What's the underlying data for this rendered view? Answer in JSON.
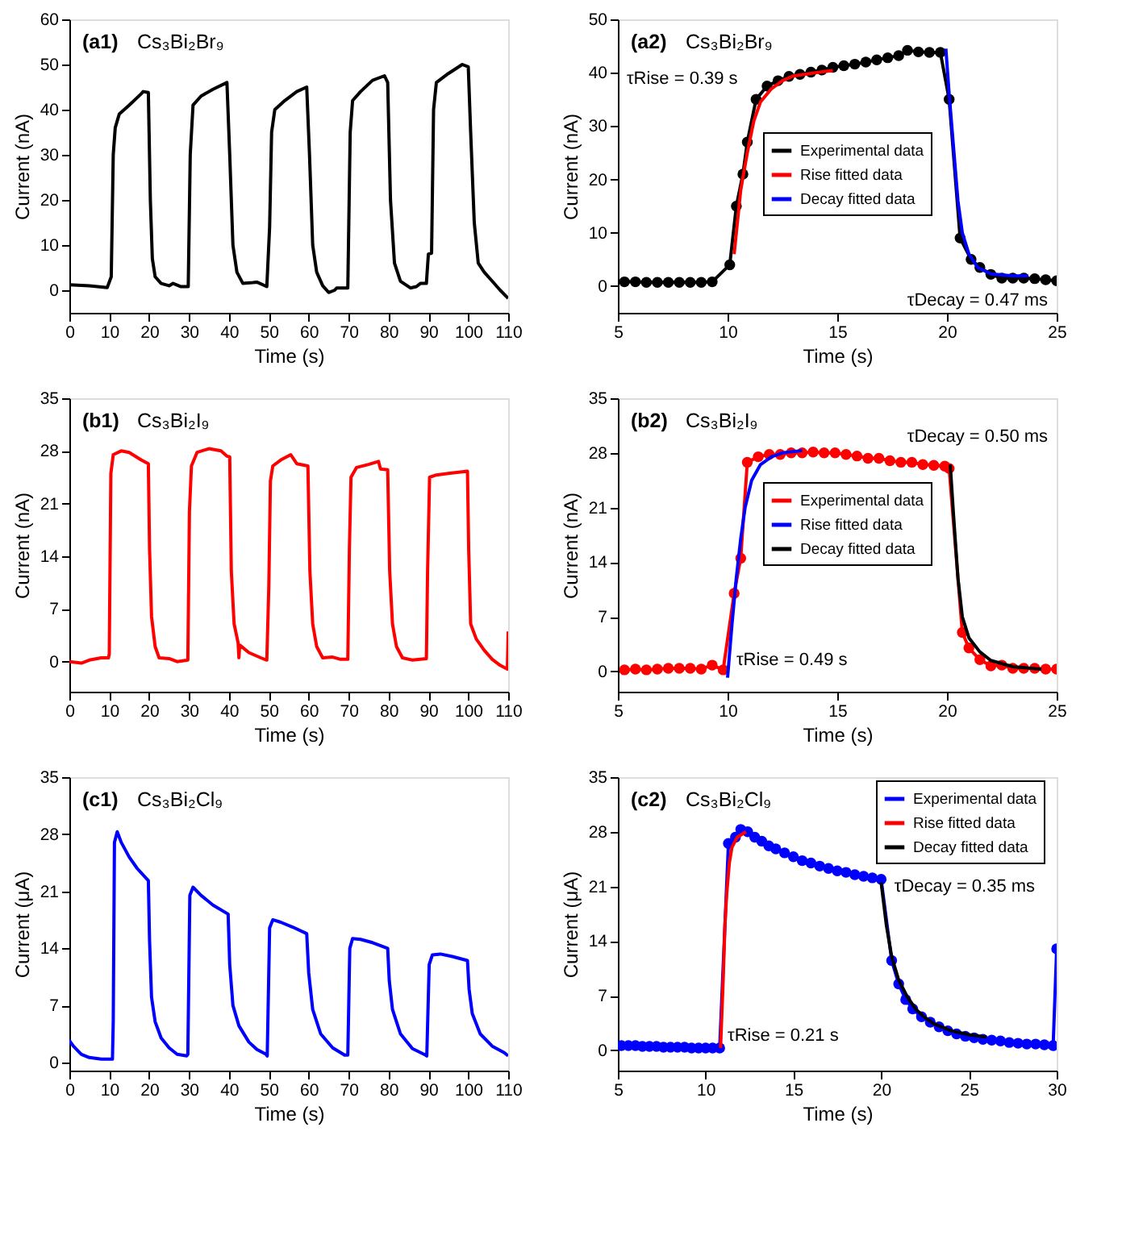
{
  "chart_data": [
    {
      "type": "line",
      "title": "(a1) Cs₃Bi₂Br₉",
      "xlabel": "Time (s)",
      "ylabel": "Current (nA)",
      "xlim": [
        0,
        110
      ],
      "xticks": [
        0,
        10,
        20,
        30,
        40,
        50,
        60,
        70,
        80,
        90,
        100,
        110
      ],
      "ylim": [
        -5,
        60
      ],
      "yticks": [
        0,
        10,
        20,
        30,
        40,
        50,
        60
      ],
      "series": [
        {
          "color": "#000000",
          "x": [
            0,
            5,
            9.5,
            10.5,
            11,
            11.5,
            12.5,
            15,
            18,
            18.5,
            19.8,
            20.3,
            20.8,
            21.5,
            23,
            25,
            26,
            28,
            29.8,
            30.3,
            31,
            33,
            36,
            39.5,
            40.2,
            41,
            42,
            43.5,
            46,
            47,
            49.5,
            50.2,
            50.7,
            51.5,
            54,
            57,
            59.5,
            60.2,
            61,
            62,
            63.5,
            65,
            66.5,
            67,
            69.8,
            70.4,
            71,
            73,
            76,
            79,
            79.8,
            80.5,
            81.5,
            83,
            85.5,
            87,
            88,
            89.5,
            90,
            90.8,
            91.3,
            92,
            95,
            98.5,
            100,
            100.6,
            101.5,
            102.5,
            104,
            106,
            108,
            110
          ],
          "values": [
            1.2,
            1,
            0.6,
            3,
            30,
            36,
            39,
            41,
            43.5,
            44,
            43.8,
            20,
            7,
            3,
            1.5,
            1,
            1.5,
            0.8,
            0.8,
            30,
            41,
            43,
            44.5,
            46,
            30,
            10,
            4,
            1.5,
            1.7,
            1.8,
            0.8,
            14,
            35,
            40,
            42,
            44,
            45,
            30,
            10,
            4,
            1,
            -0.5,
            0,
            0.5,
            0.5,
            35,
            42,
            44,
            46.5,
            47.5,
            46,
            20,
            6,
            2,
            0.5,
            0.8,
            1.5,
            1.5,
            8,
            8.2,
            40,
            46,
            48,
            50,
            49.5,
            35,
            15,
            6,
            4,
            2,
            0,
            -1.8
          ]
        }
      ]
    },
    {
      "type": "line",
      "title": "(a2) Cs₃Bi₂Br₉",
      "xlabel": "Time (s)",
      "ylabel": "Current (nA)",
      "xlim": [
        5,
        25
      ],
      "xticks": [
        5,
        10,
        15,
        20,
        25
      ],
      "ylim": [
        -5,
        50
      ],
      "yticks": [
        0,
        10,
        20,
        30,
        40,
        50
      ],
      "legend": "right",
      "annotations": [
        "τRise = 0.39 s",
        "τDecay = 0.47 ms"
      ],
      "series": [
        {
          "name": "Experimental data",
          "color": "#000000",
          "marker": "circle",
          "x": [
            5.3,
            5.8,
            6.3,
            6.8,
            7.3,
            7.8,
            8.3,
            8.8,
            9.3,
            10.1,
            10.4,
            10.7,
            10.9,
            11.3,
            11.8,
            12.3,
            12.8,
            13.3,
            13.8,
            14.3,
            14.8,
            15.3,
            15.8,
            16.3,
            16.8,
            17.3,
            17.8,
            18.2,
            18.7,
            19.2,
            19.7,
            20.1,
            20.6,
            21.1,
            21.5,
            22,
            22.5,
            23,
            23.5,
            24,
            24.5,
            25
          ],
          "values": [
            0.8,
            0.8,
            0.7,
            0.7,
            0.7,
            0.7,
            0.7,
            0.7,
            0.8,
            4,
            15,
            21,
            27,
            35,
            37.5,
            38.5,
            39.3,
            39.7,
            40.1,
            40.5,
            41,
            41.3,
            41.6,
            42,
            42.4,
            42.8,
            43.2,
            44.2,
            43.9,
            43.8,
            43.8,
            35,
            9,
            5,
            3.5,
            2.2,
            1.5,
            1.5,
            1.5,
            1.4,
            1.2,
            1.0
          ]
        },
        {
          "name": "Rise fitted data",
          "color": "#ff0000",
          "x": [
            10.3,
            10.6,
            10.9,
            11.2,
            11.5,
            12,
            12.5,
            13,
            14,
            14.8
          ],
          "values": [
            6,
            18,
            25,
            31,
            34.5,
            37,
            38.5,
            39.4,
            40,
            40.4
          ]
        },
        {
          "name": "Decay fitted data",
          "color": "#0000ff",
          "x": [
            19.95,
            20.1,
            20.3,
            20.5,
            20.7,
            21,
            21.4,
            22,
            23,
            23.7
          ],
          "values": [
            44.5,
            36,
            26,
            16,
            10,
            6,
            3.5,
            2.3,
            1.9,
            1.9
          ]
        }
      ]
    },
    {
      "type": "line",
      "title": "(b1) Cs₃Bi₂I₉",
      "xlabel": "Time (s)",
      "ylabel": "Current (nA)",
      "xlim": [
        0,
        110
      ],
      "xticks": [
        0,
        10,
        20,
        30,
        40,
        50,
        60,
        70,
        80,
        90,
        100,
        110
      ],
      "ylim": [
        -4,
        35
      ],
      "yticks": [
        0,
        7,
        14,
        21,
        28,
        35
      ],
      "series": [
        {
          "color": "#ff0000",
          "x": [
            0,
            3,
            5,
            8,
            9.8,
            10,
            10.4,
            11,
            13,
            15,
            18,
            19.8,
            20.1,
            20.6,
            21.5,
            22.5,
            25,
            27,
            29.7,
            30.1,
            30.6,
            32,
            35,
            38,
            39.5,
            40.2,
            40.6,
            41.3,
            42.3,
            42.5,
            42.7,
            45,
            48,
            49.5,
            50,
            50.4,
            51,
            53,
            55.5,
            57,
            59.8,
            60.3,
            61,
            62,
            63.5,
            66,
            68,
            69.8,
            70.2,
            70.6,
            72,
            75,
            77.5,
            78,
            79.8,
            80.3,
            81,
            82,
            83.5,
            86,
            89.5,
            89.8,
            90.3,
            92,
            95,
            99.8,
            100.1,
            100.6,
            102,
            104,
            106,
            108,
            109.8,
            110
          ],
          "values": [
            0,
            -0.2,
            0.2,
            0.5,
            0.5,
            1,
            25,
            27.5,
            28,
            27.8,
            26.8,
            26.3,
            15,
            6,
            2,
            0.5,
            0.4,
            0,
            0.2,
            20,
            26,
            27.8,
            28.3,
            28,
            27.3,
            27.2,
            12,
            5,
            2.5,
            0.5,
            2.2,
            1.2,
            0.5,
            0.2,
            10,
            24,
            26,
            26.8,
            27.5,
            26.3,
            26,
            12,
            5,
            2,
            0.5,
            0.6,
            0.3,
            0.3,
            15,
            24.5,
            25.8,
            26.2,
            26.6,
            25.6,
            25.5,
            12,
            5,
            2,
            0.5,
            0.2,
            0.4,
            12,
            24.5,
            24.8,
            25,
            25.3,
            15,
            5,
            3,
            1.5,
            0.3,
            -0.5,
            -1,
            4
          ]
        }
      ]
    },
    {
      "type": "line",
      "title": "(b2) Cs₃Bi₂I₉",
      "xlabel": "Time (s)",
      "ylabel": "Current (nA)",
      "xlim": [
        5,
        25
      ],
      "xticks": [
        5,
        10,
        15,
        20,
        25
      ],
      "ylim": [
        -2.6,
        35
      ],
      "yticks": [
        0,
        7,
        14,
        21,
        28,
        35
      ],
      "legend": "right",
      "annotations": [
        "τDecay = 0.50 ms",
        "τRise = 0.49 s"
      ],
      "series": [
        {
          "name": "Experimental data",
          "color": "#ff0000",
          "marker": "circle",
          "x": [
            5.3,
            5.8,
            6.3,
            6.8,
            7.3,
            7.8,
            8.3,
            8.8,
            9.3,
            9.8,
            10.3,
            10.6,
            10.9,
            11.4,
            11.9,
            12.4,
            12.9,
            13.4,
            13.9,
            14.4,
            14.9,
            15.4,
            15.9,
            16.4,
            16.9,
            17.4,
            17.9,
            18.4,
            18.9,
            19.4,
            19.9,
            20.1,
            20.7,
            21,
            21.5,
            22,
            22.5,
            23,
            23.5,
            24,
            24.5,
            25
          ],
          "values": [
            0.2,
            0.3,
            0.2,
            0.3,
            0.4,
            0.4,
            0.4,
            0.3,
            0.8,
            0.2,
            10,
            14.5,
            26.8,
            27.5,
            27.8,
            27.8,
            28,
            28,
            28.1,
            28,
            28,
            27.8,
            27.6,
            27.3,
            27.3,
            27,
            26.8,
            26.8,
            26.5,
            26.4,
            26.3,
            26,
            5,
            3,
            1.5,
            0.7,
            0.8,
            0.4,
            0.4,
            0.4,
            0.3,
            0.3
          ]
        },
        {
          "name": "Rise fitted data",
          "color": "#0000ff",
          "x": [
            10,
            10.2,
            10.4,
            10.6,
            10.8,
            11.1,
            11.5,
            12,
            12.5,
            13.4
          ],
          "values": [
            -0.8,
            6,
            12,
            17,
            21,
            24.5,
            26.5,
            27.5,
            28,
            28.3
          ]
        },
        {
          "name": "Decay fitted data",
          "color": "#000000",
          "x": [
            20.15,
            20.3,
            20.5,
            20.7,
            21,
            21.5,
            22,
            23,
            24.3
          ],
          "values": [
            26.5,
            20,
            12,
            7,
            4.3,
            2.5,
            1.4,
            0.6,
            0.3
          ]
        }
      ]
    },
    {
      "type": "line",
      "title": "(c1) Cs₃Bi₂Cl₉",
      "xlabel": "Time (s)",
      "ylabel": "Current (μA)",
      "xlim": [
        0,
        110
      ],
      "xticks": [
        0,
        10,
        20,
        30,
        40,
        50,
        60,
        70,
        80,
        90,
        100,
        110
      ],
      "ylim": [
        -1,
        35
      ],
      "yticks": [
        0,
        7,
        14,
        21,
        28,
        35
      ],
      "series": [
        {
          "color": "#0000ff",
          "x": [
            0,
            1,
            3,
            5,
            8,
            10.8,
            11,
            11.3,
            12,
            13,
            15,
            17,
            19.8,
            20.1,
            20.6,
            21.5,
            23,
            25,
            27,
            29.4,
            29.7,
            30.2,
            31,
            33,
            36,
            39.8,
            40.2,
            41,
            42.5,
            45,
            47,
            49.3,
            49.6,
            50.2,
            51,
            53,
            56,
            59.5,
            60,
            61,
            63,
            66,
            69,
            69.8,
            70.3,
            71,
            73,
            76,
            79.8,
            80.2,
            81,
            83,
            86,
            89.3,
            89.6,
            90.2,
            91,
            93,
            96,
            99.8,
            100.2,
            101,
            103,
            106,
            109,
            110
          ],
          "values": [
            2.7,
            2,
            1,
            0.6,
            0.4,
            0.4,
            5,
            27,
            28.3,
            27,
            25.2,
            23.8,
            22.3,
            15,
            8,
            5,
            3,
            1.8,
            1,
            0.8,
            1,
            20.5,
            21.5,
            20.5,
            19.3,
            18.2,
            12,
            7,
            4.5,
            2.5,
            1.6,
            1,
            0.8,
            16.5,
            17.5,
            17.2,
            16.6,
            15.8,
            11,
            6.5,
            3.5,
            1.8,
            0.9,
            0.9,
            14,
            15.2,
            15.1,
            14.7,
            14,
            10,
            6.5,
            3.5,
            1.7,
            0.9,
            0.8,
            12,
            13.2,
            13.3,
            13,
            12.5,
            9,
            6,
            3.5,
            2,
            1.2,
            0.8
          ]
        }
      ]
    },
    {
      "type": "line",
      "title": "(c2) Cs₃Bi₂Cl₉",
      "xlabel": "Time (s)",
      "ylabel": "Current (μA)",
      "xlim": [
        5,
        30
      ],
      "xticks": [
        5,
        10,
        15,
        20,
        25,
        30
      ],
      "ylim": [
        -2.6,
        35
      ],
      "yticks": [
        0,
        7,
        14,
        21,
        28,
        35
      ],
      "legend": "right",
      "annotations": [
        "τDecay = 0.35 ms",
        "τRise = 0.21 s"
      ],
      "series": [
        {
          "name": "Experimental data",
          "color": "#0000ff",
          "marker": "circle",
          "x": [
            5.2,
            5.6,
            6,
            6.4,
            6.8,
            7.2,
            7.6,
            8,
            8.4,
            8.8,
            9.2,
            9.6,
            10,
            10.4,
            10.8,
            11.3,
            11.7,
            12,
            12.4,
            12.8,
            13.2,
            13.6,
            14,
            14.5,
            15,
            15.5,
            16,
            16.5,
            17,
            17.5,
            18,
            18.5,
            19,
            19.5,
            20,
            20.6,
            21,
            21.4,
            21.8,
            22.3,
            22.8,
            23.3,
            23.8,
            24.3,
            24.8,
            25.3,
            25.8,
            26.3,
            26.8,
            27.3,
            27.8,
            28.3,
            28.8,
            29.3,
            29.8,
            30
          ],
          "values": [
            0.6,
            0.6,
            0.6,
            0.5,
            0.5,
            0.5,
            0.4,
            0.4,
            0.4,
            0.4,
            0.3,
            0.3,
            0.3,
            0.3,
            0.3,
            26.5,
            27.3,
            28.3,
            28,
            27.3,
            26.8,
            26.2,
            25.8,
            25.3,
            24.8,
            24.3,
            24,
            23.6,
            23.3,
            23,
            22.8,
            22.5,
            22.3,
            22.1,
            21.9,
            11.5,
            8.5,
            6.5,
            5.3,
            4.3,
            3.6,
            3,
            2.5,
            2.1,
            1.8,
            1.6,
            1.4,
            1.3,
            1.2,
            1,
            0.9,
            0.8,
            0.8,
            0.7,
            0.6,
            13
          ]
        },
        {
          "name": "Rise fitted data",
          "color": "#ff0000",
          "x": [
            10.85,
            11,
            11.1,
            11.2,
            11.35,
            11.5,
            11.8,
            12.3
          ],
          "values": [
            0.3,
            9,
            16,
            20,
            24,
            26,
            27.3,
            28
          ]
        },
        {
          "name": "Decay fitted data",
          "color": "#000000",
          "x": [
            20,
            20.3,
            20.6,
            21,
            21.5,
            22,
            22.5,
            23,
            24,
            25,
            26
          ],
          "values": [
            21.5,
            16,
            12,
            9,
            6.8,
            5.2,
            4.2,
            3.4,
            2.5,
            2,
            1.7
          ]
        }
      ]
    }
  ]
}
